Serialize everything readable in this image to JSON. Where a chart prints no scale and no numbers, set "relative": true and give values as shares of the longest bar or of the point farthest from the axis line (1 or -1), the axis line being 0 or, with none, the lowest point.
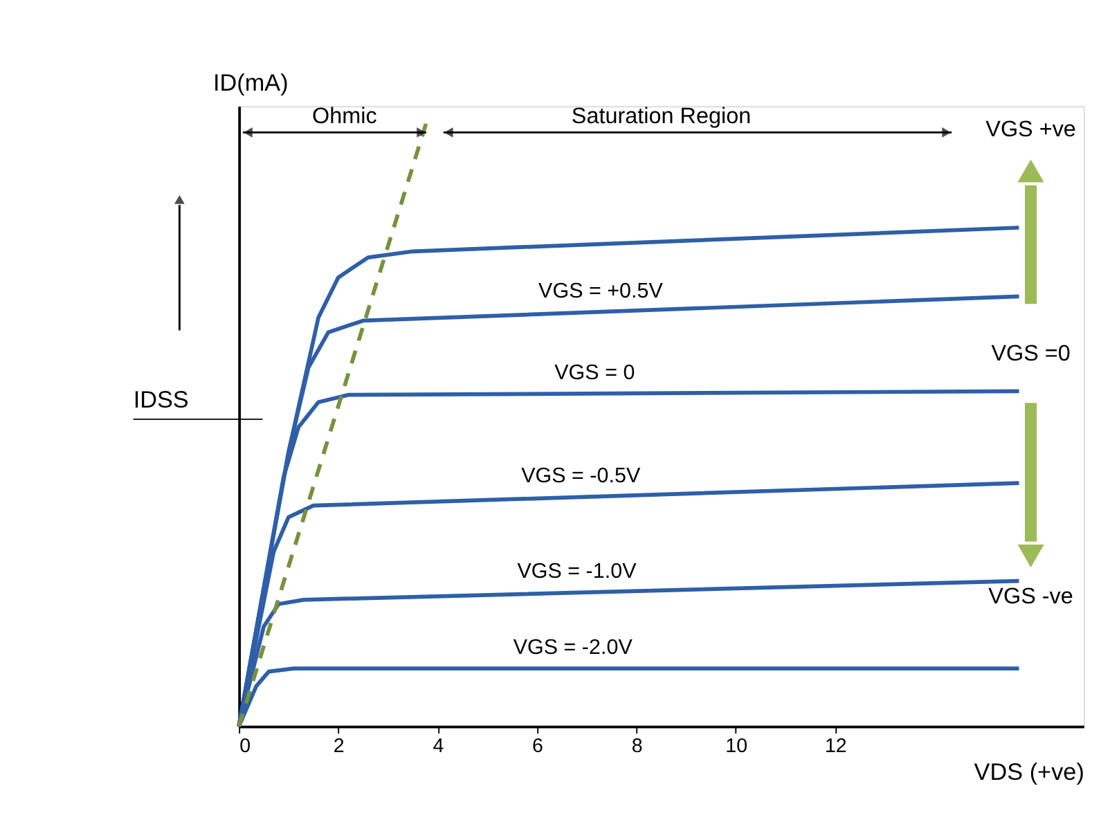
{
  "chart_data": {
    "type": "line",
    "relative": true,
    "xlabel": "VDS (+ve)",
    "ylabel": "ID(mA)",
    "xlim": [
      0,
      17
    ],
    "xticks": [
      0,
      2,
      4,
      6,
      8,
      10,
      12
    ],
    "grid": false,
    "line_style": "solid",
    "marker": "none",
    "series": [
      {
        "color": "#2e5fa8",
        "x": [
          0,
          1.0,
          1.6,
          2.0,
          2.6,
          3.5,
          15.7
        ],
        "values": [
          0,
          0.451,
          0.672,
          0.738,
          0.771,
          0.781,
          0.82
        ]
      },
      {
        "name": "VGS = +0.5V",
        "color": "#2e5fa8",
        "x": [
          0,
          1.0,
          1.4,
          1.8,
          2.5,
          15.7
        ],
        "values": [
          0,
          0.451,
          0.59,
          0.648,
          0.667,
          0.707
        ]
      },
      {
        "name": "VGS = 0",
        "color": "#2e5fa8",
        "x": [
          0,
          0.9,
          1.2,
          1.6,
          2.2,
          15.7
        ],
        "values": [
          0,
          0.41,
          0.492,
          0.533,
          0.545,
          0.551
        ]
      },
      {
        "name": "VGS = -0.5V",
        "color": "#2e5fa8",
        "x": [
          0,
          0.7,
          1.0,
          1.5,
          15.7
        ],
        "values": [
          0,
          0.287,
          0.344,
          0.363,
          0.4
        ]
      },
      {
        "name": "VGS = -1.0V",
        "color": "#2e5fa8",
        "x": [
          0,
          0.5,
          0.8,
          1.3,
          15.7
        ],
        "values": [
          0,
          0.164,
          0.201,
          0.208,
          0.239
        ]
      },
      {
        "name": "VGS = -2.0V",
        "color": "#2e5fa8",
        "x": [
          0,
          0.35,
          0.6,
          1.1,
          15.7
        ],
        "values": [
          0,
          0.066,
          0.09,
          0.095,
          0.095
        ]
      },
      {
        "type": "line",
        "line_style": "dashed",
        "color": "#76923c",
        "x": [
          0,
          3.8
        ],
        "values": [
          0,
          1
        ]
      }
    ],
    "ref_lines": [
      {
        "axis": "y",
        "value": 0.505,
        "label": "IDSS"
      }
    ],
    "annotations": [
      "Ohmic",
      "Saturation Region",
      "VGS +ve",
      "VGS =0",
      "VGS -ve"
    ]
  }
}
